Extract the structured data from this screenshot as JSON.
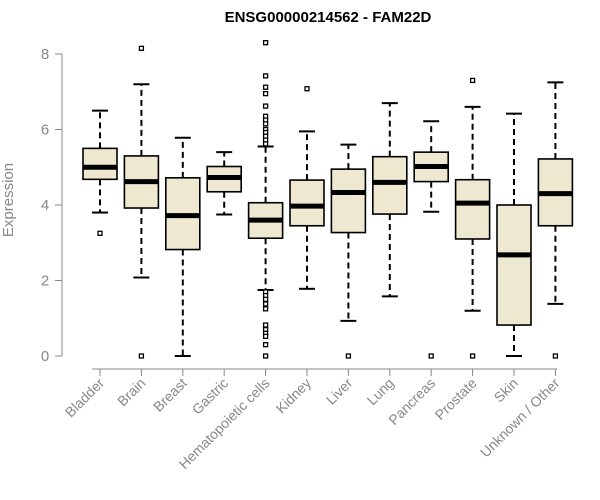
{
  "chart_data": {
    "type": "boxplot",
    "title": "ENSG00000214562 - FAM22D",
    "xlabel": "",
    "ylabel": "Expression",
    "ylim": [
      0,
      8.3
    ],
    "yticks": [
      0,
      2,
      4,
      6,
      8
    ],
    "box_fill": "#EFE8D0",
    "box_stroke": "#000000",
    "axis_color": "#888888",
    "categories": [
      "Bladder",
      "Brain",
      "Breast",
      "Gastric",
      "Hematopoietic cells",
      "Kidney",
      "Liver",
      "Lung",
      "Pancreas",
      "Prostate",
      "Skin",
      "Unknown / Other"
    ],
    "boxes": [
      {
        "label": "Bladder",
        "whisker_low": 3.8,
        "q1": 4.68,
        "median": 5.0,
        "q3": 5.5,
        "whisker_high": 6.5,
        "outliers": [
          3.25
        ]
      },
      {
        "label": "Brain",
        "whisker_low": 2.08,
        "q1": 3.92,
        "median": 4.62,
        "q3": 5.3,
        "whisker_high": 7.2,
        "outliers": [
          8.15,
          0.0
        ]
      },
      {
        "label": "Breast",
        "whisker_low": 0.0,
        "q1": 2.82,
        "median": 3.72,
        "q3": 4.72,
        "whisker_high": 5.78,
        "outliers": []
      },
      {
        "label": "Gastric",
        "whisker_low": 3.75,
        "q1": 4.35,
        "median": 4.73,
        "q3": 5.02,
        "whisker_high": 5.4,
        "outliers": []
      },
      {
        "label": "Hematopoietic cells",
        "whisker_low": 1.75,
        "q1": 3.12,
        "median": 3.6,
        "q3": 4.06,
        "whisker_high": 5.55,
        "outliers": [
          8.3,
          7.42,
          7.12,
          6.95,
          6.62,
          6.35,
          6.25,
          6.15,
          6.0,
          5.92,
          5.82,
          5.72,
          5.62,
          1.7,
          1.6,
          1.5,
          1.38,
          1.25,
          0.82,
          0.7,
          0.6,
          0.52,
          0.3,
          0.0
        ]
      },
      {
        "label": "Kidney",
        "whisker_low": 1.78,
        "q1": 3.45,
        "median": 3.97,
        "q3": 4.66,
        "whisker_high": 5.95,
        "outliers": [
          7.08
        ]
      },
      {
        "label": "Liver",
        "whisker_low": 0.93,
        "q1": 3.27,
        "median": 4.33,
        "q3": 4.95,
        "whisker_high": 5.6,
        "outliers": [
          0.0
        ]
      },
      {
        "label": "Lung",
        "whisker_low": 1.58,
        "q1": 3.76,
        "median": 4.6,
        "q3": 5.28,
        "whisker_high": 6.7,
        "outliers": []
      },
      {
        "label": "Pancreas",
        "whisker_low": 3.82,
        "q1": 4.62,
        "median": 5.02,
        "q3": 5.4,
        "whisker_high": 6.22,
        "outliers": [
          0.0
        ]
      },
      {
        "label": "Prostate",
        "whisker_low": 1.2,
        "q1": 3.1,
        "median": 4.05,
        "q3": 4.67,
        "whisker_high": 6.6,
        "outliers": [
          7.3,
          0.0
        ]
      },
      {
        "label": "Skin",
        "whisker_low": 0.0,
        "q1": 0.82,
        "median": 2.68,
        "q3": 4.0,
        "whisker_high": 6.42,
        "outliers": []
      },
      {
        "label": "Unknown / Other",
        "whisker_low": 1.38,
        "q1": 3.45,
        "median": 4.3,
        "q3": 5.22,
        "whisker_high": 7.25,
        "outliers": [
          0.0
        ]
      }
    ]
  }
}
